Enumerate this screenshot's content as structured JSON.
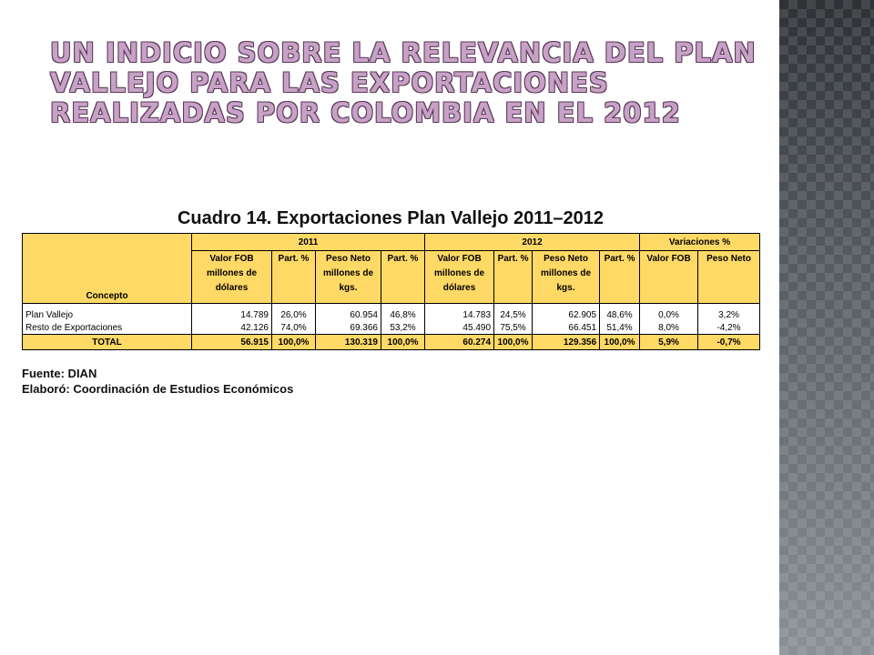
{
  "slide": {
    "title": "Un indicio sobre la relevancia del Plan Vallejo para las exportaciones realizadas por Colombia en el 2012"
  },
  "table": {
    "caption": "Cuadro 14. Exportaciones Plan Vallejo  2011–2012",
    "group_headers": {
      "y2011": "2011",
      "y2012": "2012",
      "variaciones": "Variaciones %"
    },
    "column_headers": {
      "concepto": "Concepto",
      "valor_fob": "Valor FOB millones de dólares",
      "part": "Part. %",
      "peso_neto": "Peso Neto millones de kgs.",
      "var_valor_fob": "Valor FOB",
      "var_peso_neto": "Peso Neto"
    },
    "rows": [
      {
        "concepto": "Plan Vallejo",
        "fob_2011": "14.789",
        "part_fob_2011": "26,0%",
        "peso_2011": "60.954",
        "part_peso_2011": "46,8%",
        "fob_2012": "14.783",
        "part_fob_2012": "24,5%",
        "peso_2012": "62.905",
        "part_peso_2012": "48,6%",
        "var_fob": "0,0%",
        "var_peso": "3,2%"
      },
      {
        "concepto": "Resto de Exportaciones",
        "fob_2011": "42.126",
        "part_fob_2011": "74,0%",
        "peso_2011": "69.366",
        "part_peso_2011": "53,2%",
        "fob_2012": "45.490",
        "part_fob_2012": "75,5%",
        "peso_2012": "66.451",
        "part_peso_2012": "51,4%",
        "var_fob": "8,0%",
        "var_peso": "-4,2%"
      }
    ],
    "total": {
      "concepto": "TOTAL",
      "fob_2011": "56.915",
      "part_fob_2011": "100,0%",
      "peso_2011": "130.319",
      "part_peso_2011": "100,0%",
      "fob_2012": "60.274",
      "part_fob_2012": "100,0%",
      "peso_2012": "129.356",
      "part_peso_2012": "100,0%",
      "var_fob": "5,9%",
      "var_peso": "-0,7%"
    }
  },
  "notes": {
    "fuente": "Fuente: DIAN",
    "elaboro": "Elaboró: Coordinación de Estudios Económicos"
  },
  "colors": {
    "header_fill": "#ffd966",
    "title_fill": "#c7a2c6",
    "title_outline": "#5a3a58"
  }
}
